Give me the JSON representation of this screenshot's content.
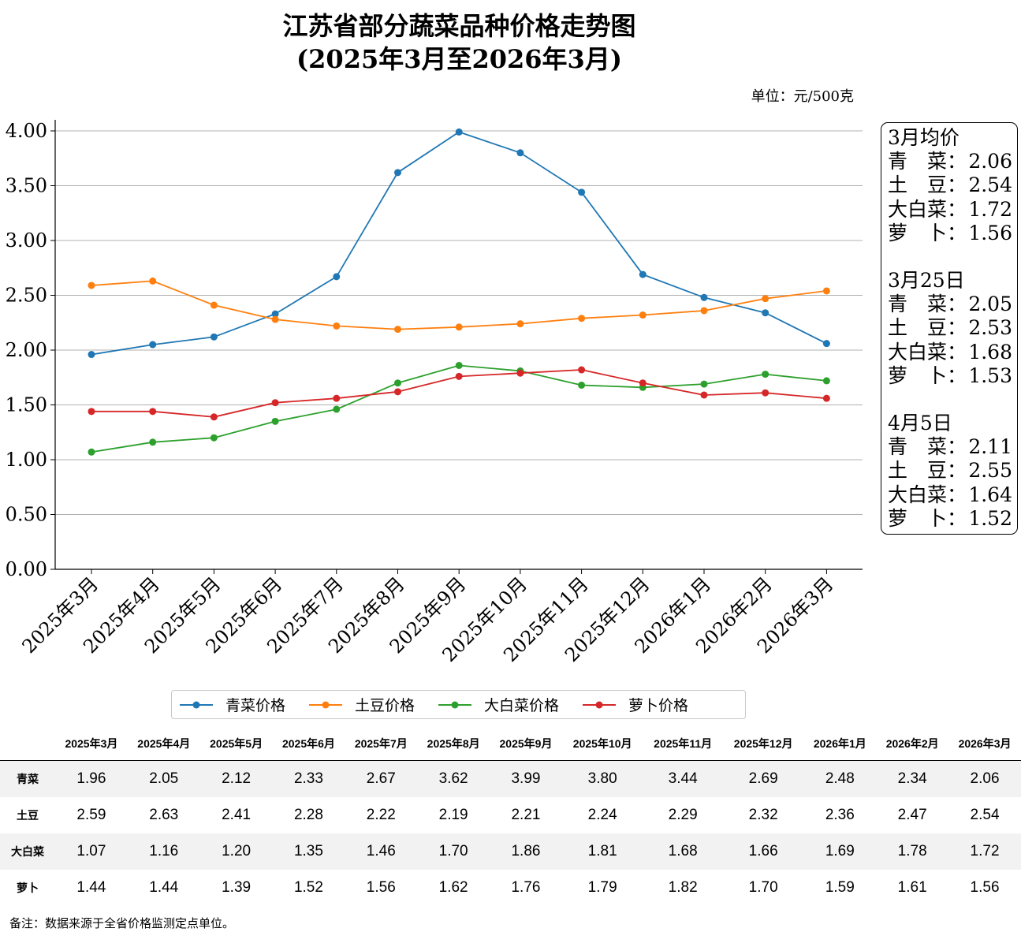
{
  "chart_data": {
    "type": "line",
    "title": "江苏省部分蔬菜品种价格走势图",
    "subtitle": "(2025年3月至2026年3月)",
    "unit_label": "单位：元/500克",
    "ylim": [
      0,
      4.0
    ],
    "yticks": [
      "0.00",
      "0.50",
      "1.00",
      "1.50",
      "2.00",
      "2.50",
      "3.00",
      "3.50",
      "4.00"
    ],
    "grid": true,
    "legend_position": "bottom",
    "categories": [
      "2025年3月",
      "2025年4月",
      "2025年5月",
      "2025年6月",
      "2025年7月",
      "2025年8月",
      "2025年9月",
      "2025年10月",
      "2025年11月",
      "2025年12月",
      "2026年1月",
      "2026年2月",
      "2026年3月"
    ],
    "series": [
      {
        "name": "青菜价格",
        "color": "#1f77b4",
        "values": [
          1.96,
          2.05,
          2.12,
          2.33,
          2.67,
          3.62,
          3.99,
          3.8,
          3.44,
          2.69,
          2.48,
          2.34,
          2.06
        ]
      },
      {
        "name": "土豆价格",
        "color": "#ff7f0e",
        "values": [
          2.59,
          2.63,
          2.41,
          2.28,
          2.22,
          2.19,
          2.21,
          2.24,
          2.29,
          2.32,
          2.36,
          2.47,
          2.54
        ]
      },
      {
        "name": "大白菜价格",
        "color": "#2ca02c",
        "values": [
          1.07,
          1.16,
          1.2,
          1.35,
          1.46,
          1.7,
          1.86,
          1.81,
          1.68,
          1.66,
          1.69,
          1.78,
          1.72
        ]
      },
      {
        "name": "萝卜价格",
        "color": "#d62728",
        "values": [
          1.44,
          1.44,
          1.39,
          1.52,
          1.56,
          1.62,
          1.76,
          1.79,
          1.82,
          1.7,
          1.59,
          1.61,
          1.56
        ]
      }
    ]
  },
  "sidebox": [
    {
      "title": "3月均价",
      "rows": [
        [
          "青　菜：",
          "2.06"
        ],
        [
          "土　豆：",
          "2.54"
        ],
        [
          "大白菜：",
          "1.72"
        ],
        [
          "萝　卜：",
          "1.56"
        ]
      ]
    },
    {
      "title": "3月25日",
      "rows": [
        [
          "青　菜：",
          "2.05"
        ],
        [
          "土　豆：",
          "2.53"
        ],
        [
          "大白菜：",
          "1.68"
        ],
        [
          "萝　卜：",
          "1.53"
        ]
      ]
    },
    {
      "title": "4月5日",
      "rows": [
        [
          "青　菜：",
          "2.11"
        ],
        [
          "土　豆：",
          "2.55"
        ],
        [
          "大白菜：",
          "1.64"
        ],
        [
          "萝　卜：",
          "1.52"
        ]
      ]
    }
  ],
  "table": {
    "row_labels": [
      "青菜",
      "土豆",
      "大白菜",
      "萝卜"
    ],
    "rows": [
      [
        "1.96",
        "2.05",
        "2.12",
        "2.33",
        "2.67",
        "3.62",
        "3.99",
        "3.80",
        "3.44",
        "2.69",
        "2.48",
        "2.34",
        "2.06"
      ],
      [
        "2.59",
        "2.63",
        "2.41",
        "2.28",
        "2.22",
        "2.19",
        "2.21",
        "2.24",
        "2.29",
        "2.32",
        "2.36",
        "2.47",
        "2.54"
      ],
      [
        "1.07",
        "1.16",
        "1.20",
        "1.35",
        "1.46",
        "1.70",
        "1.86",
        "1.81",
        "1.68",
        "1.66",
        "1.69",
        "1.78",
        "1.72"
      ],
      [
        "1.44",
        "1.44",
        "1.39",
        "1.52",
        "1.56",
        "1.62",
        "1.76",
        "1.79",
        "1.82",
        "1.70",
        "1.59",
        "1.61",
        "1.56"
      ]
    ]
  },
  "footnote": "备注：数据来源于全省价格监测定点单位。"
}
